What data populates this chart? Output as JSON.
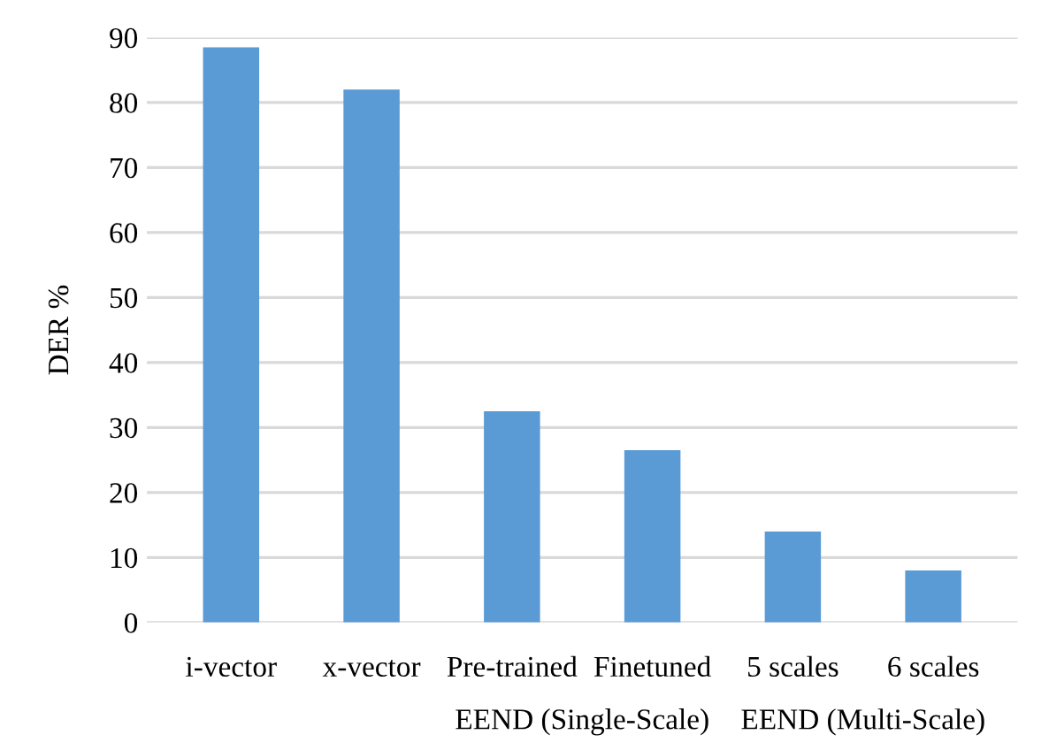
{
  "chart_data": {
    "type": "bar",
    "ylabel": "DER %",
    "categories": [
      "i-vector",
      "x-vector",
      "Pre-trained",
      "Finetuned",
      "5 scales",
      "6 scales"
    ],
    "values": [
      88.5,
      82,
      32.5,
      26.5,
      14,
      8
    ],
    "color": "#5b9bd5",
    "ylim": [
      0,
      90
    ],
    "yticks": [
      0,
      10,
      20,
      30,
      40,
      50,
      60,
      70,
      80,
      90
    ],
    "grid": "y",
    "annotations": [
      "EEND (Single-Scale)",
      "EEND (Multi-Scale)"
    ]
  }
}
